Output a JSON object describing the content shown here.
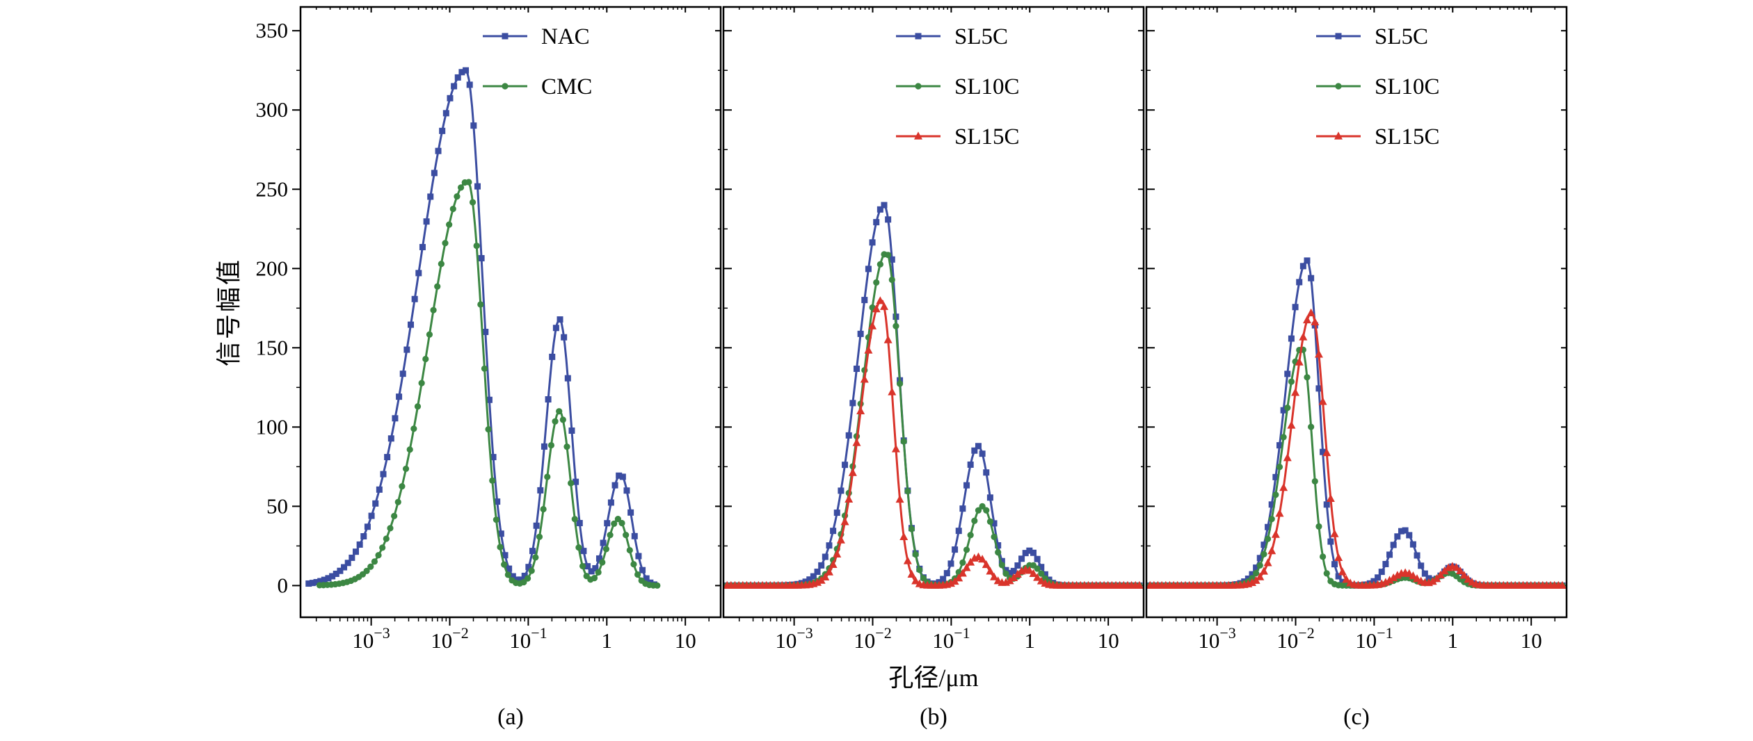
{
  "figure": {
    "ylabel": "信号幅值",
    "xlabel": "孔径/μm",
    "captions": [
      "(a)",
      "(b)",
      "(c)"
    ]
  },
  "chart_data": [
    {
      "type": "line",
      "panel_label": "(a)",
      "x_scale": "log",
      "xlabel": "孔径/μm",
      "ylabel": "信号幅值",
      "ylim": [
        0,
        350
      ],
      "yticks": [
        0,
        50,
        100,
        150,
        200,
        250,
        300,
        350
      ],
      "xticks": [
        0.001,
        0.01,
        0.1,
        1,
        10
      ],
      "xtick_labels": [
        [
          "10",
          "−3"
        ],
        [
          "10",
          "−2"
        ],
        [
          "10",
          "−1"
        ],
        [
          "1",
          ""
        ],
        [
          "10",
          ""
        ]
      ],
      "legend_position": "top-center",
      "series": [
        {
          "name": "NAC",
          "color": "#3b4da1",
          "marker": "square",
          "x_start_um": 0.00016,
          "x_end_um": 4.5,
          "peaks": [
            {
              "center_um": 0.016,
              "amplitude": 325,
              "sigma_left_log10": 0.6,
              "sigma_right_log10": 0.21
            },
            {
              "center_um": 0.25,
              "amplitude": 168,
              "sigma_left_log10": 0.17,
              "sigma_right_log10": 0.15
            },
            {
              "center_um": 1.5,
              "amplitude": 70,
              "sigma_left_log10": 0.16,
              "sigma_right_log10": 0.14
            }
          ]
        },
        {
          "name": "CMC",
          "color": "#3c8743",
          "marker": "circle",
          "x_start_um": 0.00022,
          "x_end_um": 4.5,
          "peaks": [
            {
              "center_um": 0.017,
              "amplitude": 255,
              "sigma_left_log10": 0.5,
              "sigma_right_log10": 0.19
            },
            {
              "center_um": 0.25,
              "amplitude": 110,
              "sigma_left_log10": 0.16,
              "sigma_right_log10": 0.14
            },
            {
              "center_um": 1.4,
              "amplitude": 42,
              "sigma_left_log10": 0.14,
              "sigma_right_log10": 0.13
            }
          ]
        }
      ]
    },
    {
      "type": "line",
      "panel_label": "(b)",
      "x_scale": "log",
      "xlabel": "孔径/μm",
      "ylabel": "信号幅值",
      "ylim": [
        0,
        350
      ],
      "yticks": [
        0,
        50,
        100,
        150,
        200,
        250,
        300,
        350
      ],
      "xticks": [
        0.001,
        0.01,
        0.1,
        1,
        10
      ],
      "xtick_labels": [
        [
          "10",
          "−3"
        ],
        [
          "10",
          "−2"
        ],
        [
          "10",
          "−1"
        ],
        [
          "1",
          ""
        ],
        [
          "10",
          ""
        ]
      ],
      "legend_position": "top-center",
      "series": [
        {
          "name": "SL5C",
          "color": "#3b4da1",
          "marker": "square",
          "x_start_um": 0.00014,
          "x_end_um": 25,
          "peaks": [
            {
              "center_um": 0.014,
              "amplitude": 240,
              "sigma_left_log10": 0.33,
              "sigma_right_log10": 0.18
            },
            {
              "center_um": 0.22,
              "amplitude": 88,
              "sigma_left_log10": 0.18,
              "sigma_right_log10": 0.16
            },
            {
              "center_um": 1.0,
              "amplitude": 22,
              "sigma_left_log10": 0.14,
              "sigma_right_log10": 0.13
            }
          ]
        },
        {
          "name": "SL10C",
          "color": "#3c8743",
          "marker": "circle",
          "x_start_um": 0.00014,
          "x_end_um": 25,
          "peaks": [
            {
              "center_um": 0.015,
              "amplitude": 210,
              "sigma_left_log10": 0.3,
              "sigma_right_log10": 0.17
            },
            {
              "center_um": 0.25,
              "amplitude": 50,
              "sigma_left_log10": 0.16,
              "sigma_right_log10": 0.15
            },
            {
              "center_um": 1.05,
              "amplitude": 13,
              "sigma_left_log10": 0.13,
              "sigma_right_log10": 0.12
            }
          ]
        },
        {
          "name": "SL15C",
          "color": "#d9342b",
          "marker": "triangle",
          "x_start_um": 0.00014,
          "x_end_um": 25,
          "peaks": [
            {
              "center_um": 0.013,
              "amplitude": 180,
              "sigma_left_log10": 0.27,
              "sigma_right_log10": 0.15
            },
            {
              "center_um": 0.22,
              "amplitude": 18,
              "sigma_left_log10": 0.15,
              "sigma_right_log10": 0.13
            },
            {
              "center_um": 0.9,
              "amplitude": 10,
              "sigma_left_log10": 0.13,
              "sigma_right_log10": 0.12
            }
          ]
        }
      ]
    },
    {
      "type": "line",
      "panel_label": "(c)",
      "x_scale": "log",
      "xlabel": "孔径/μm",
      "ylabel": "信号幅值",
      "ylim": [
        0,
        350
      ],
      "yticks": [
        0,
        50,
        100,
        150,
        200,
        250,
        300,
        350
      ],
      "xticks": [
        0.001,
        0.01,
        0.1,
        1,
        10
      ],
      "xtick_labels": [
        [
          "10",
          "−3"
        ],
        [
          "10",
          "−2"
        ],
        [
          "10",
          "−1"
        ],
        [
          "1",
          ""
        ],
        [
          "10",
          ""
        ]
      ],
      "legend_position": "top-center",
      "series": [
        {
          "name": "SL5C",
          "color": "#3b4da1",
          "marker": "square",
          "x_start_um": 0.00014,
          "x_end_um": 25,
          "peaks": [
            {
              "center_um": 0.014,
              "amplitude": 205,
              "sigma_left_log10": 0.27,
              "sigma_right_log10": 0.15
            },
            {
              "center_um": 0.24,
              "amplitude": 35,
              "sigma_left_log10": 0.17,
              "sigma_right_log10": 0.15
            },
            {
              "center_um": 1.0,
              "amplitude": 12,
              "sigma_left_log10": 0.13,
              "sigma_right_log10": 0.12
            }
          ]
        },
        {
          "name": "SL10C",
          "color": "#3c8743",
          "marker": "circle",
          "x_start_um": 0.00014,
          "x_end_um": 25,
          "peaks": [
            {
              "center_um": 0.012,
              "amplitude": 150,
              "sigma_left_log10": 0.24,
              "sigma_right_log10": 0.13
            },
            {
              "center_um": 0.25,
              "amplitude": 5,
              "sigma_left_log10": 0.15,
              "sigma_right_log10": 0.13
            },
            {
              "center_um": 0.9,
              "amplitude": 8,
              "sigma_left_log10": 0.14,
              "sigma_right_log10": 0.12
            }
          ]
        },
        {
          "name": "SL15C",
          "color": "#d9342b",
          "marker": "triangle",
          "x_start_um": 0.00014,
          "x_end_um": 25,
          "peaks": [
            {
              "center_um": 0.016,
              "amplitude": 172,
              "sigma_left_log10": 0.25,
              "sigma_right_log10": 0.16
            },
            {
              "center_um": 0.25,
              "amplitude": 8,
              "sigma_left_log10": 0.15,
              "sigma_right_log10": 0.13
            },
            {
              "center_um": 1.0,
              "amplitude": 12,
              "sigma_left_log10": 0.14,
              "sigma_right_log10": 0.13
            }
          ]
        }
      ]
    }
  ]
}
